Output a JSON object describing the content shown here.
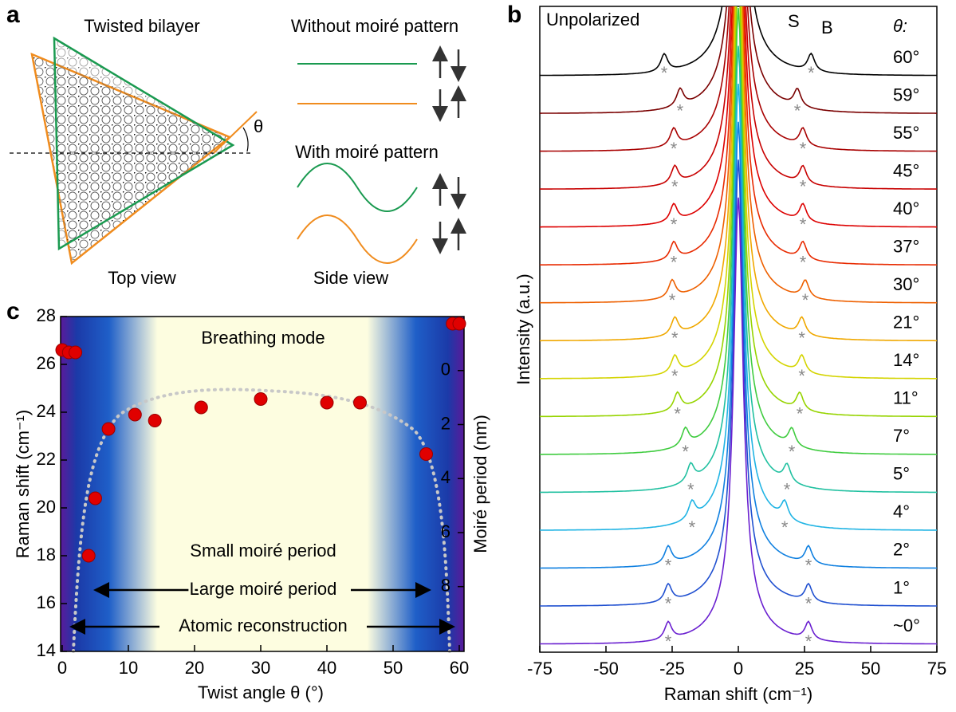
{
  "panel_labels": [
    "a",
    "b",
    "c"
  ],
  "diagram": {
    "title": "Twisted bilayer",
    "angle_label": "θ",
    "without_label": "Without moiré pattern",
    "with_label": "With moiré pattern",
    "top_view": "Top view",
    "side_view": "Side view"
  },
  "chart_data": [
    {
      "type": "spectra",
      "x_label": "Raman shift (cm⁻¹)",
      "y_label": "Intensity (a.u.)",
      "annotations": [
        "Unpolarized",
        "S",
        "B"
      ],
      "legend_title": "θ:",
      "xlim": [
        -75,
        75
      ],
      "xticks": [
        -75,
        -50,
        -25,
        0,
        25,
        50,
        75
      ],
      "series": [
        {
          "name": "60°",
          "color": "#000000",
          "peaks": [
            -28,
            27.5
          ]
        },
        {
          "name": "59°",
          "color": "#7a0000",
          "peaks": [
            -22,
            22.3
          ]
        },
        {
          "name": "55°",
          "color": "#a80000",
          "peaks": [
            -24.4,
            24.4
          ]
        },
        {
          "name": "45°",
          "color": "#c80000",
          "peaks": [
            -24,
            24.4
          ]
        },
        {
          "name": "40°",
          "color": "#dd0000",
          "peaks": [
            -24.4,
            24.4
          ]
        },
        {
          "name": "37°",
          "color": "#e82a00",
          "peaks": [
            -24.4,
            24.4
          ]
        },
        {
          "name": "30°",
          "color": "#ee6000",
          "peaks": [
            -25,
            25.3
          ]
        },
        {
          "name": "21°",
          "color": "#f0a800",
          "peaks": [
            -24,
            24
          ]
        },
        {
          "name": "14°",
          "color": "#d4d400",
          "peaks": [
            -24,
            24
          ]
        },
        {
          "name": "11°",
          "color": "#96d400",
          "peaks": [
            -23,
            23.2
          ]
        },
        {
          "name": "7°",
          "color": "#40cc40",
          "peaks": [
            -20,
            20.2
          ]
        },
        {
          "name": "5°",
          "color": "#20c0a0",
          "peaks": [
            -18,
            18.4
          ]
        },
        {
          "name": "4°",
          "color": "#20b4e4",
          "peaks": [
            -17.5,
            17.5
          ]
        },
        {
          "name": "2°",
          "color": "#1080e0",
          "peaks": [
            -26.5,
            26.5
          ]
        },
        {
          "name": "1°",
          "color": "#2050d0",
          "peaks": [
            -26.5,
            26.5
          ]
        },
        {
          "name": "~0°",
          "color": "#6a20d0",
          "peaks": [
            -26.5,
            26.5
          ]
        }
      ]
    },
    {
      "type": "scatter",
      "x_label": "Twist angle θ (°)",
      "y_label": "Raman shift (cm⁻¹)",
      "y2_label": "Moiré period (nm)",
      "xlim": [
        0,
        60
      ],
      "xticks": [
        0,
        10,
        20,
        30,
        40,
        50,
        60
      ],
      "ylim": [
        14,
        28
      ],
      "yticks": [
        14,
        16,
        18,
        20,
        22,
        24,
        26,
        28
      ],
      "y2lim": [
        10.4,
        -2
      ],
      "y2ticks": [
        0,
        2,
        4,
        6,
        8
      ],
      "color": "#e00000",
      "x": [
        0,
        1,
        2,
        4,
        5,
        7,
        11,
        14,
        21,
        30,
        40,
        45,
        55,
        59,
        60
      ],
      "values": [
        26.6,
        26.5,
        26.5,
        18,
        20.4,
        23.3,
        23.9,
        23.65,
        24.2,
        24.55,
        24.4,
        24.4,
        22.25,
        27.7,
        27.7
      ],
      "annotations": [
        "Breathing mode",
        "Small moiré period",
        "Large moiré period",
        "Atomic reconstruction"
      ]
    }
  ]
}
